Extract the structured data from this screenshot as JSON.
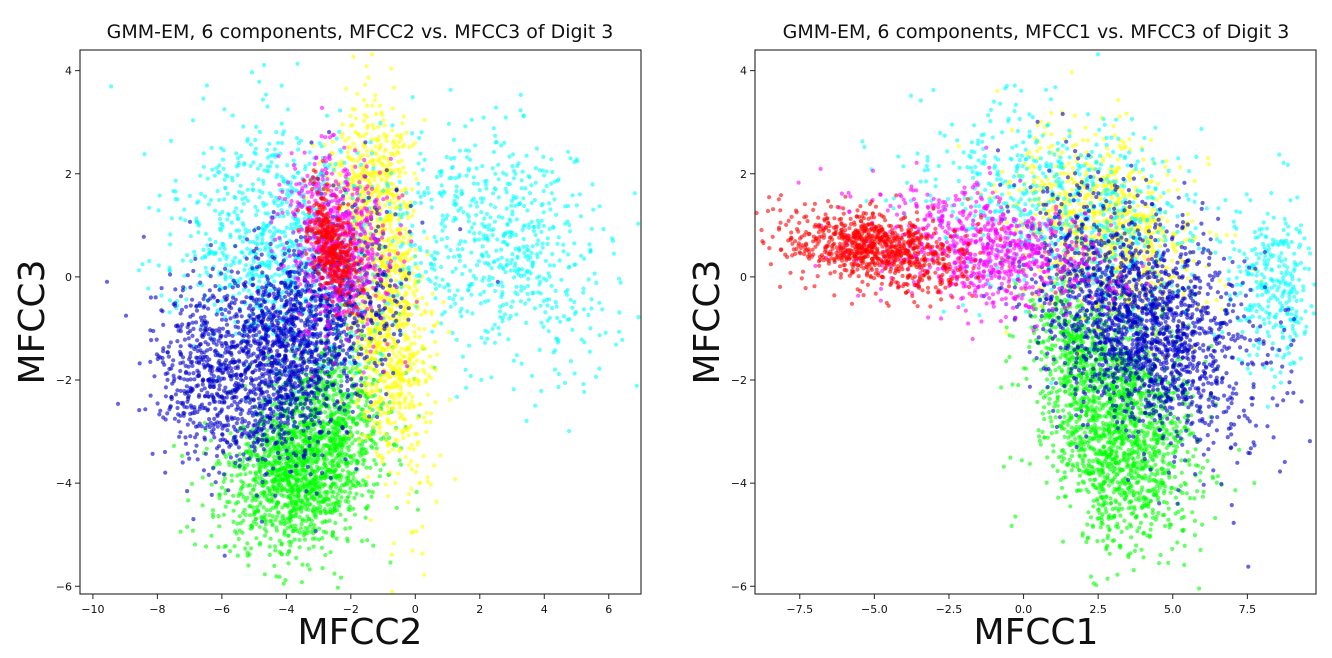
{
  "chart_data": [
    {
      "type": "scatter",
      "title": "GMM-EM, 6 components, MFCC2 vs. MFCC3 of Digit 3",
      "xlabel": "MFCC2",
      "ylabel": "MFCC3",
      "xlim": [
        -10.4,
        7.0
      ],
      "ylim": [
        -6.15,
        4.4
      ],
      "xticks": [
        -10,
        -8,
        -6,
        -4,
        -2,
        0,
        2,
        4,
        6
      ],
      "xtick_labels": [
        "−10",
        "−8",
        "−6",
        "−4",
        "−2",
        "0",
        "2",
        "4",
        "6"
      ],
      "yticks": [
        -6,
        -4,
        -2,
        0,
        2,
        4
      ],
      "ytick_labels": [
        "−6",
        "−4",
        "−2",
        "0",
        "2",
        "4"
      ],
      "grid": false,
      "series": [
        {
          "color": "#00ff00",
          "clusters": [
            {
              "cx": -3.6,
              "cy": -3.8,
              "sx": 1.2,
              "sy": 0.75,
              "rot": 0.2,
              "n": 1400
            },
            {
              "cx": -2.8,
              "cy": -2.5,
              "sx": 1.0,
              "sy": 0.7,
              "rot": 0.3,
              "n": 500
            }
          ]
        },
        {
          "color": "#ffff00",
          "clusters": [
            {
              "cx": -0.9,
              "cy": -0.6,
              "sx": 0.6,
              "sy": 1.6,
              "rot": 0.15,
              "n": 1100
            },
            {
              "cx": -1.5,
              "cy": 2.0,
              "sx": 0.7,
              "sy": 0.6,
              "rot": 0.0,
              "n": 250
            }
          ]
        },
        {
          "color": "#00ffff",
          "clusters": [
            {
              "cx": -4.2,
              "cy": 0.6,
              "sx": 1.7,
              "sy": 1.1,
              "rot": -0.1,
              "n": 900
            },
            {
              "cx": 2.8,
              "cy": 0.6,
              "sx": 1.7,
              "sy": 1.1,
              "rot": -0.2,
              "n": 650
            }
          ]
        },
        {
          "color": "#0000cc",
          "clusters": [
            {
              "cx": -3.8,
              "cy": -1.3,
              "sx": 1.6,
              "sy": 0.95,
              "rot": 0.45,
              "n": 1800
            },
            {
              "cx": -6.6,
              "cy": -1.6,
              "sx": 0.8,
              "sy": 0.8,
              "rot": 0.0,
              "n": 350
            }
          ]
        },
        {
          "color": "#ff00ff",
          "clusters": [
            {
              "cx": -2.4,
              "cy": 0.7,
              "sx": 0.7,
              "sy": 0.9,
              "rot": 0.6,
              "n": 650
            }
          ]
        },
        {
          "color": "#ff0000",
          "clusters": [
            {
              "cx": -2.6,
              "cy": 0.6,
              "sx": 0.3,
              "sy": 0.6,
              "rot": 0.5,
              "n": 350
            }
          ]
        }
      ]
    },
    {
      "type": "scatter",
      "title": "GMM-EM, 6 components, MFCC1 vs. MFCC3 of Digit 3",
      "xlabel": "MFCC1",
      "ylabel": "MFCC3",
      "xlim": [
        -9.0,
        9.8
      ],
      "ylim": [
        -6.15,
        4.4
      ],
      "xticks": [
        -7.5,
        -5.0,
        -2.5,
        0.0,
        2.5,
        5.0,
        7.5
      ],
      "xtick_labels": [
        "−7.5",
        "−5.0",
        "−2.5",
        "0.0",
        "2.5",
        "5.0",
        "7.5"
      ],
      "yticks": [
        -6,
        -4,
        -2,
        0,
        2,
        4
      ],
      "ytick_labels": [
        "−6",
        "−4",
        "−2",
        "0",
        "2",
        "4"
      ],
      "grid": false,
      "series": [
        {
          "color": "#00ff00",
          "clusters": [
            {
              "cx": 3.2,
              "cy": -2.9,
              "sx": 1.3,
              "sy": 1.05,
              "rot": -0.6,
              "n": 1600
            },
            {
              "cx": 1.8,
              "cy": -1.3,
              "sx": 1.0,
              "sy": 0.6,
              "rot": -0.4,
              "n": 350
            }
          ]
        },
        {
          "color": "#ffff00",
          "clusters": [
            {
              "cx": 2.8,
              "cy": 0.9,
              "sx": 1.6,
              "sy": 0.8,
              "rot": -0.3,
              "n": 900
            }
          ]
        },
        {
          "color": "#00ffff",
          "clusters": [
            {
              "cx": 1.4,
              "cy": 1.3,
              "sx": 2.4,
              "sy": 0.9,
              "rot": -0.1,
              "n": 700
            },
            {
              "cx": 8.4,
              "cy": -0.2,
              "sx": 0.7,
              "sy": 0.9,
              "rot": 0.0,
              "n": 300
            }
          ]
        },
        {
          "color": "#0000cc",
          "clusters": [
            {
              "cx": 4.0,
              "cy": -0.9,
              "sx": 1.9,
              "sy": 1.0,
              "rot": -0.35,
              "n": 1900
            }
          ]
        },
        {
          "color": "#ff00ff",
          "clusters": [
            {
              "cx": -1.3,
              "cy": 0.5,
              "sx": 1.9,
              "sy": 0.55,
              "rot": -0.1,
              "n": 800
            }
          ]
        },
        {
          "color": "#ff0000",
          "clusters": [
            {
              "cx": -5.0,
              "cy": 0.55,
              "sx": 1.5,
              "sy": 0.35,
              "rot": -0.08,
              "n": 900
            }
          ]
        }
      ]
    }
  ]
}
